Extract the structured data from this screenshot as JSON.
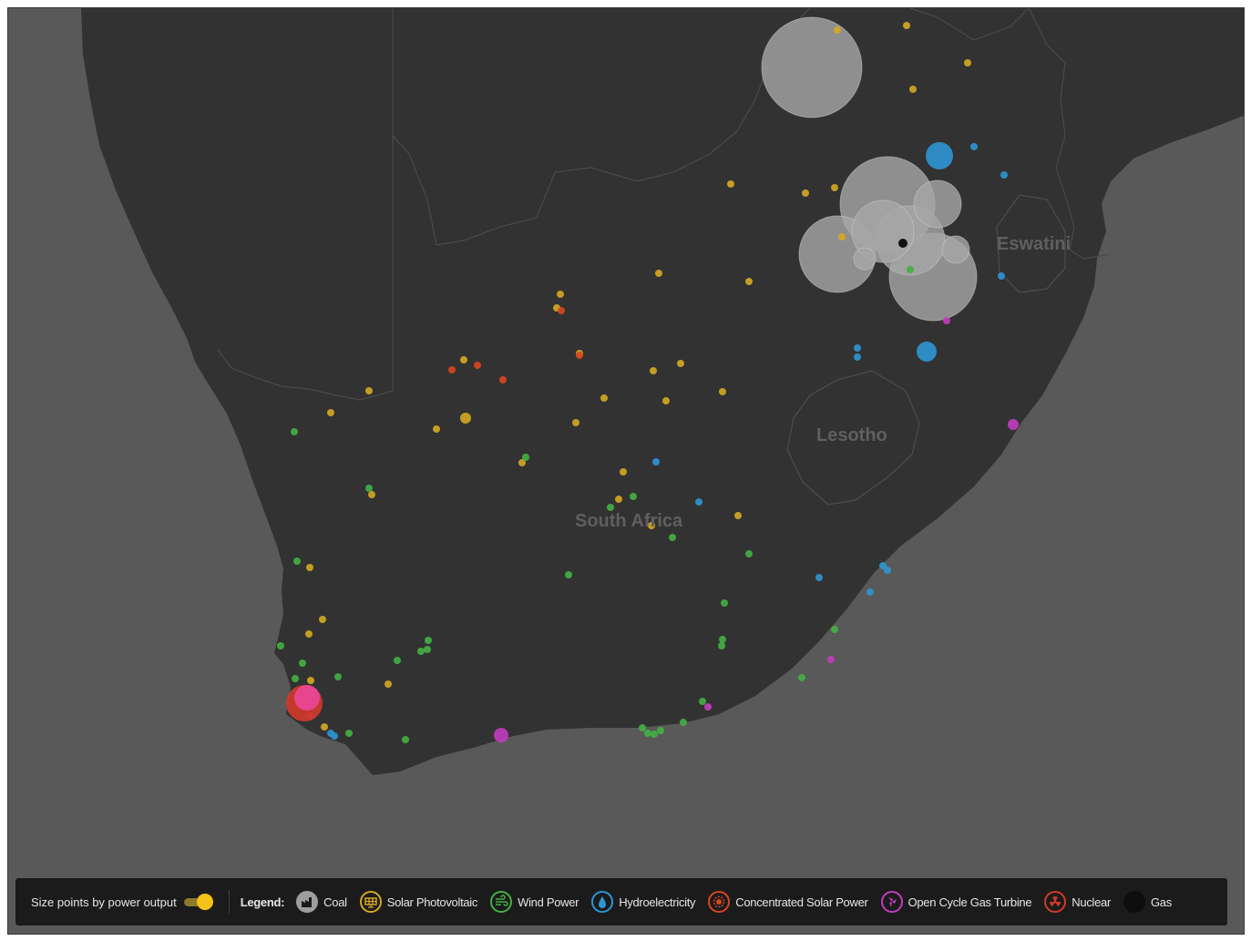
{
  "map": {
    "country_labels": {
      "south_africa": "South Africa",
      "lesotho": "Lesotho",
      "eswatini": "Eswatini"
    },
    "colors": {
      "ocean": "#595959",
      "land": "#323232",
      "border": "#4a4a4a"
    }
  },
  "controls": {
    "size_toggle_label": "Size points by power output",
    "size_toggle_on": true
  },
  "legend": {
    "title": "Legend:",
    "items": [
      {
        "label": "Coal",
        "color": "#9e9e9e",
        "icon": "factory-icon"
      },
      {
        "label": "Solar Photovoltaic",
        "color": "#d4a822",
        "icon": "solar-panel-icon"
      },
      {
        "label": "Wind Power",
        "color": "#43b043",
        "icon": "wind-icon"
      },
      {
        "label": "Hydroelectricity",
        "color": "#2e95d3",
        "icon": "water-drop-icon"
      },
      {
        "label": "Concentrated Solar Power",
        "color": "#d9461e",
        "icon": "sun-gear-icon"
      },
      {
        "label": "Open Cycle Gas Turbine",
        "color": "#c33cc0",
        "icon": "turbine-icon"
      },
      {
        "label": "Nuclear",
        "color": "#d23a2a",
        "icon": "radiation-icon"
      },
      {
        "label": "Gas",
        "color": "#0e0e0e",
        "icon": "gas-icon"
      }
    ]
  }
}
